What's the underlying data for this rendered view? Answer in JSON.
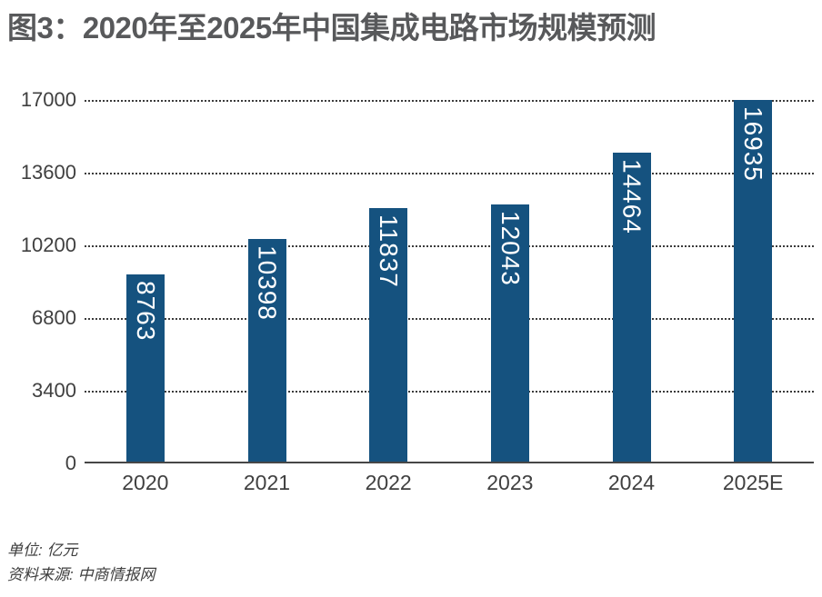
{
  "figure": {
    "title": "图3：2020年至2025年中国集成电路市场规模预测",
    "unit_note": "单位: 亿元",
    "source_note": "资料来源: 中商情报网"
  },
  "chart_data": {
    "type": "bar",
    "title": "图3：2020年至2025年中国集成电路市场规模预测",
    "categories": [
      "2020",
      "2021",
      "2022",
      "2023",
      "2024",
      "2025E"
    ],
    "values": [
      8763,
      10398,
      11837,
      12043,
      14464,
      16935
    ],
    "unit": "亿元",
    "source": "中商情报网",
    "xlabel": "",
    "ylabel": "",
    "ylim": [
      0,
      17000
    ],
    "y_ticks": [
      0,
      3400,
      6800,
      10200,
      13600,
      17000
    ],
    "grid": "horizontal-dotted",
    "legend": "none",
    "bar_labels_position": "inside-top-rotated-90"
  },
  "colors": {
    "bar": "#15527F",
    "bar_value_label": "#FFFFFF",
    "title_text": "#58595B",
    "axis_text": "#404040",
    "gridline": "#3B3B3B",
    "axis_line": "#474747",
    "background": "#FFFFFF"
  }
}
